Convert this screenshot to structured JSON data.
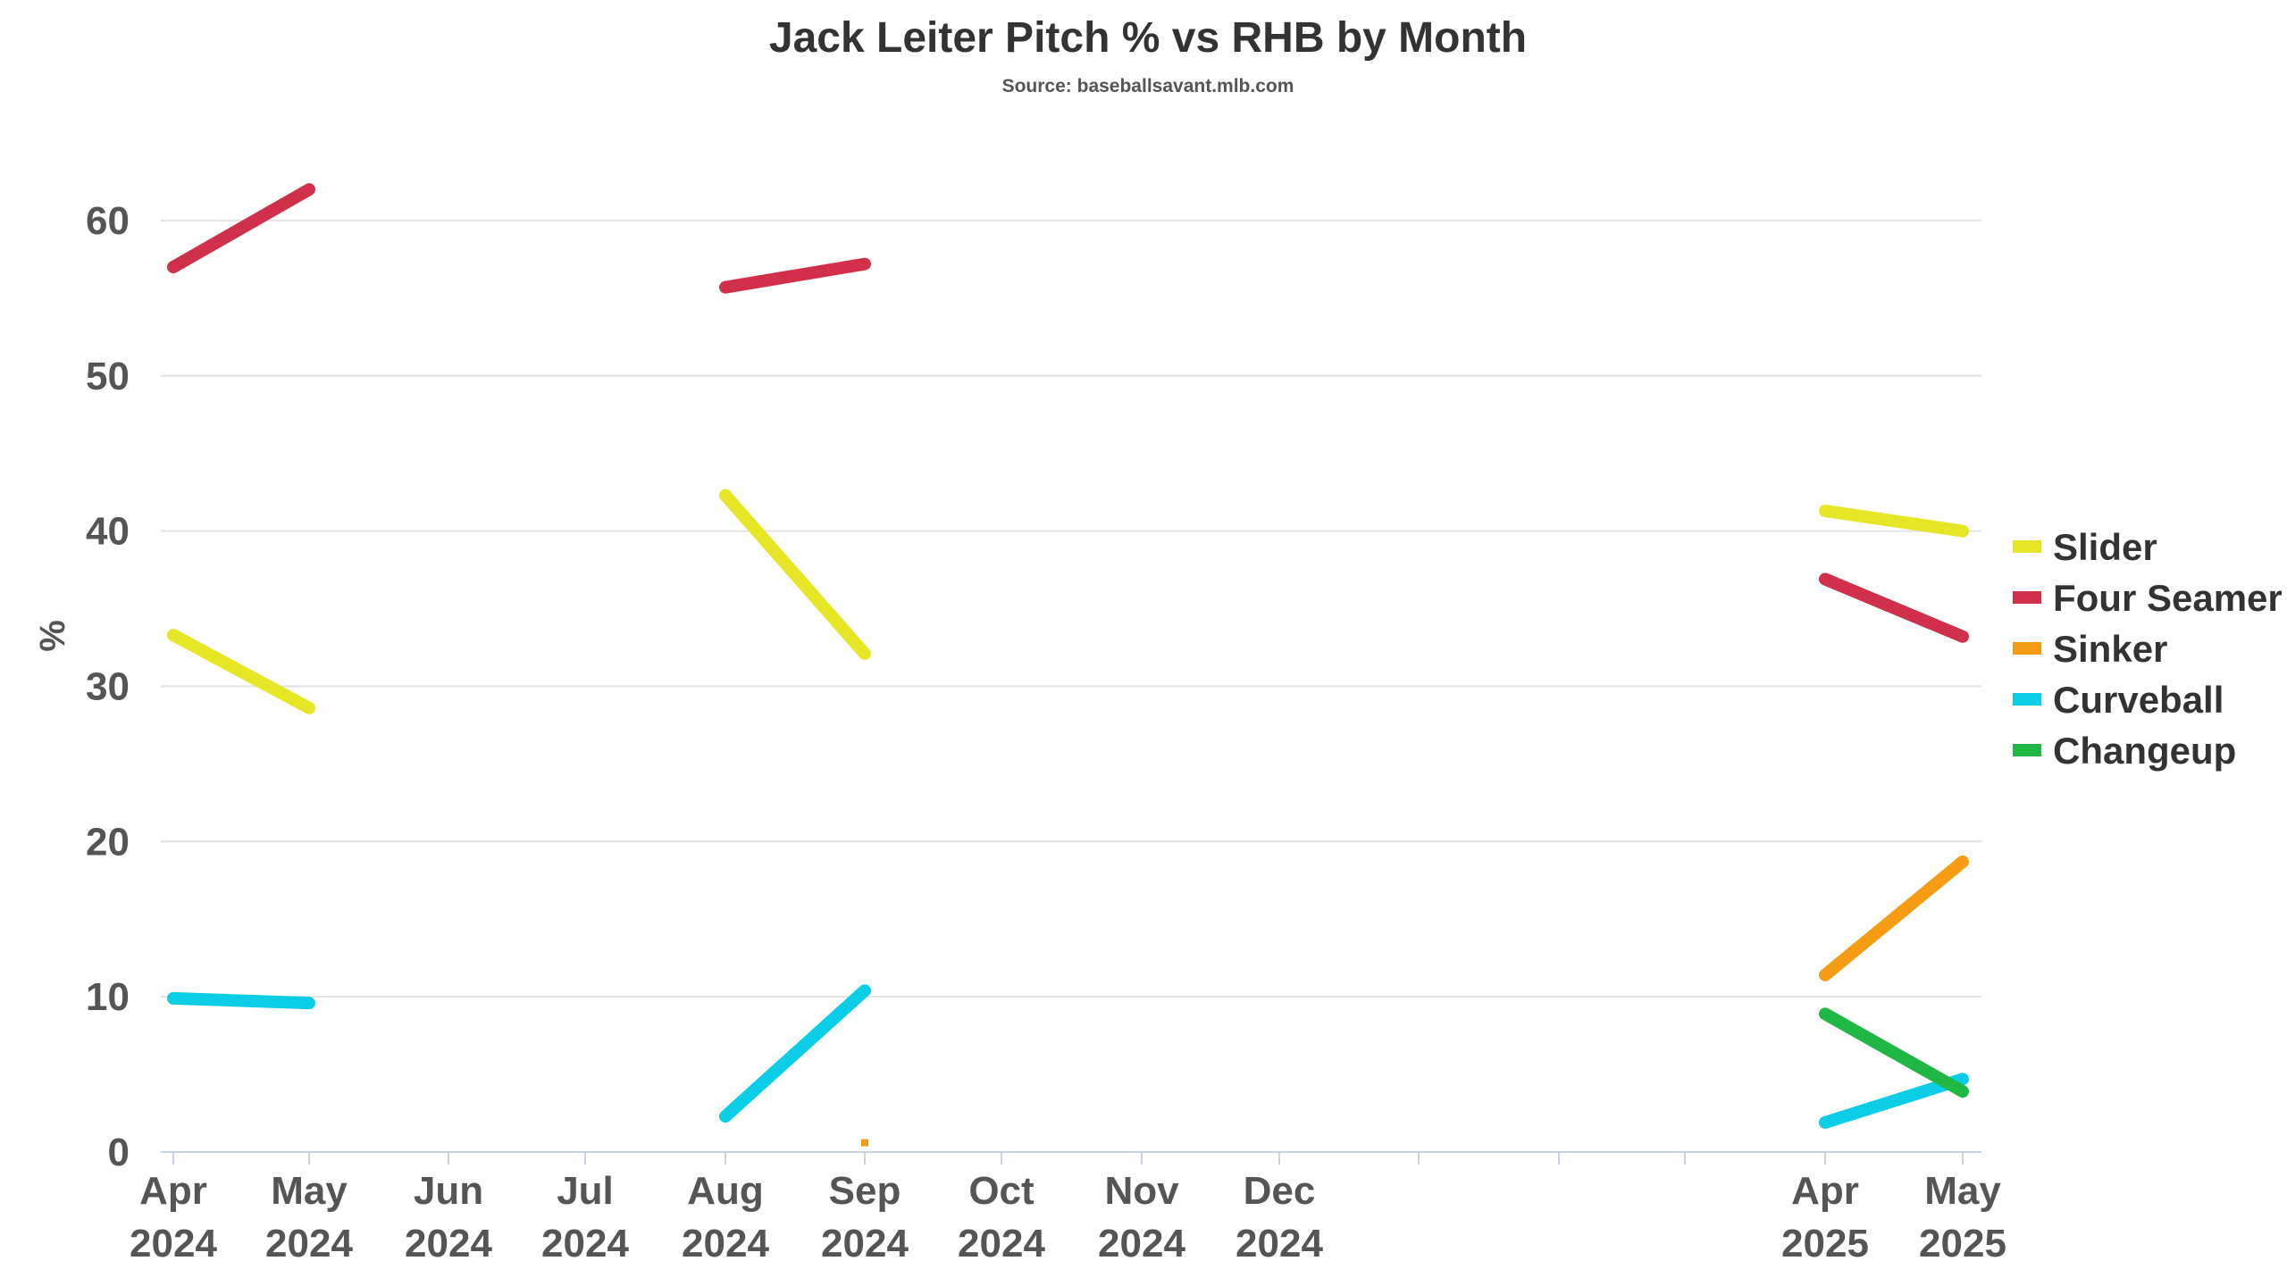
{
  "chart_data": {
    "type": "line",
    "title": "Jack Leiter Pitch % vs RHB by Month",
    "subtitle": "Source: baseballsavant.mlb.com",
    "ylabel": "%",
    "xlabel": "",
    "ylim": [
      0,
      65
    ],
    "yticks": [
      0,
      10,
      20,
      30,
      40,
      50,
      60
    ],
    "grid": true,
    "legend_position": "right",
    "x_categories": [
      {
        "key": "2024-04",
        "month": "Apr",
        "year": "2024"
      },
      {
        "key": "2024-05",
        "month": "May",
        "year": "2024"
      },
      {
        "key": "2024-06",
        "month": "Jun",
        "year": "2024"
      },
      {
        "key": "2024-07",
        "month": "Jul",
        "year": "2024"
      },
      {
        "key": "2024-08",
        "month": "Aug",
        "year": "2024"
      },
      {
        "key": "2024-09",
        "month": "Sep",
        "year": "2024"
      },
      {
        "key": "2024-10",
        "month": "Oct",
        "year": "2024"
      },
      {
        "key": "2024-11",
        "month": "Nov",
        "year": "2024"
      },
      {
        "key": "2024-12",
        "month": "Dec",
        "year": "2024"
      },
      {
        "key": "2025-01",
        "month": "",
        "year": ""
      },
      {
        "key": "2025-02",
        "month": "",
        "year": ""
      },
      {
        "key": "2025-03",
        "month": "",
        "year": ""
      },
      {
        "key": "2025-04",
        "month": "Apr",
        "year": "2025"
      },
      {
        "key": "2025-05",
        "month": "May",
        "year": "2025"
      }
    ],
    "series": [
      {
        "name": "Slider",
        "color": "#e6e627",
        "values": [
          33.3,
          28.6,
          null,
          null,
          42.3,
          32.1,
          null,
          null,
          null,
          null,
          null,
          null,
          41.3,
          40.0
        ]
      },
      {
        "name": "Four Seamer",
        "color": "#d1304a",
        "values": [
          57.0,
          62.0,
          null,
          null,
          55.7,
          57.2,
          null,
          null,
          null,
          null,
          null,
          null,
          36.9,
          33.2
        ]
      },
      {
        "name": "Sinker",
        "color": "#f59b14",
        "values": [
          null,
          null,
          null,
          null,
          null,
          0.6,
          null,
          null,
          null,
          null,
          null,
          null,
          11.4,
          18.7
        ]
      },
      {
        "name": "Curveball",
        "color": "#0ccde6",
        "values": [
          9.9,
          9.6,
          null,
          null,
          2.3,
          10.4,
          null,
          null,
          null,
          null,
          null,
          null,
          1.9,
          4.7
        ]
      },
      {
        "name": "Changeup",
        "color": "#1fb844",
        "values": [
          null,
          null,
          null,
          null,
          null,
          null,
          null,
          null,
          null,
          null,
          null,
          null,
          8.9,
          3.9
        ]
      }
    ]
  }
}
